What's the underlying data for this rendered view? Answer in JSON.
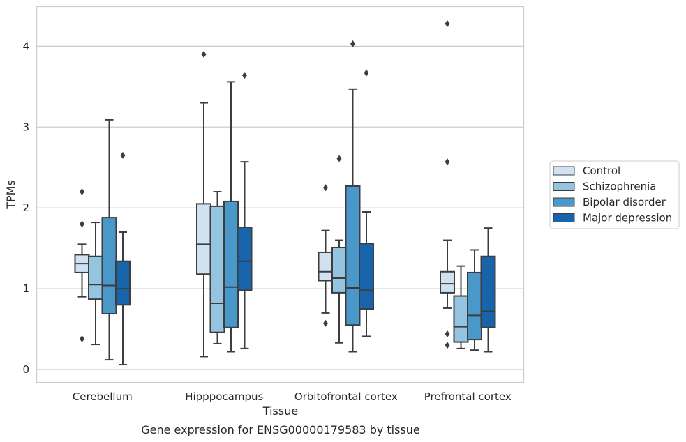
{
  "chart_data": {
    "type": "boxplot",
    "xlabel": "Tissue",
    "ylabel": "TPMs",
    "caption": "Gene expression for ENSG00000179583 by tissue",
    "ylim": [
      -0.15,
      4.5
    ],
    "yticks": [
      "0",
      "1",
      "2",
      "3",
      "4"
    ],
    "grid": "horizontal",
    "legend_position": "right",
    "categories": [
      "Cerebellum",
      "Hipppocampus",
      "Orbitofrontal cortex",
      "Prefrontal cortex"
    ],
    "series": [
      {
        "name": "Control",
        "color": "#d0e1f2",
        "boxes": [
          {
            "whislo": 0.9,
            "q1": 1.2,
            "med": 1.31,
            "q3": 1.42,
            "whishi": 1.55,
            "fliers": [
              2.2,
              1.8,
              0.38
            ]
          },
          {
            "whislo": 0.16,
            "q1": 1.18,
            "med": 1.55,
            "q3": 2.05,
            "whishi": 3.3,
            "fliers": [
              3.9
            ]
          },
          {
            "whislo": 0.7,
            "q1": 1.1,
            "med": 1.21,
            "q3": 1.45,
            "whishi": 1.72,
            "fliers": [
              2.25,
              0.57
            ]
          },
          {
            "whislo": 0.76,
            "q1": 0.95,
            "med": 1.06,
            "q3": 1.21,
            "whishi": 1.6,
            "fliers": [
              4.28,
              2.57,
              0.44,
              0.3
            ]
          }
        ]
      },
      {
        "name": "Schizophrenia",
        "color": "#94c4df",
        "boxes": [
          {
            "whislo": 0.31,
            "q1": 0.87,
            "med": 1.05,
            "q3": 1.4,
            "whishi": 1.82,
            "fliers": []
          },
          {
            "whislo": 0.32,
            "q1": 0.46,
            "med": 0.82,
            "q3": 2.02,
            "whishi": 2.2,
            "fliers": []
          },
          {
            "whislo": 0.33,
            "q1": 0.95,
            "med": 1.13,
            "q3": 1.51,
            "whishi": 1.6,
            "fliers": [
              2.61
            ]
          },
          {
            "whislo": 0.26,
            "q1": 0.34,
            "med": 0.53,
            "q3": 0.91,
            "whishi": 1.28,
            "fliers": []
          }
        ]
      },
      {
        "name": "Bipolar disorder",
        "color": "#4a98c9",
        "boxes": [
          {
            "whislo": 0.12,
            "q1": 0.69,
            "med": 1.04,
            "q3": 1.88,
            "whishi": 3.09,
            "fliers": []
          },
          {
            "whislo": 0.22,
            "q1": 0.52,
            "med": 1.02,
            "q3": 2.08,
            "whishi": 3.56,
            "fliers": []
          },
          {
            "whislo": 0.22,
            "q1": 0.55,
            "med": 1.01,
            "q3": 2.27,
            "whishi": 3.47,
            "fliers": [
              4.03
            ]
          },
          {
            "whislo": 0.24,
            "q1": 0.37,
            "med": 0.67,
            "q3": 1.2,
            "whishi": 1.48,
            "fliers": []
          }
        ]
      },
      {
        "name": "Major depression",
        "color": "#1764ab",
        "boxes": [
          {
            "whislo": 0.06,
            "q1": 0.8,
            "med": 1.0,
            "q3": 1.34,
            "whishi": 1.7,
            "fliers": [
              2.65
            ]
          },
          {
            "whislo": 0.26,
            "q1": 0.98,
            "med": 1.34,
            "q3": 1.76,
            "whishi": 2.57,
            "fliers": [
              3.64
            ]
          },
          {
            "whislo": 0.41,
            "q1": 0.75,
            "med": 0.98,
            "q3": 1.56,
            "whishi": 1.95,
            "fliers": [
              3.67
            ]
          },
          {
            "whislo": 0.22,
            "q1": 0.52,
            "med": 0.72,
            "q3": 1.4,
            "whishi": 1.75,
            "fliers": []
          }
        ]
      }
    ]
  }
}
